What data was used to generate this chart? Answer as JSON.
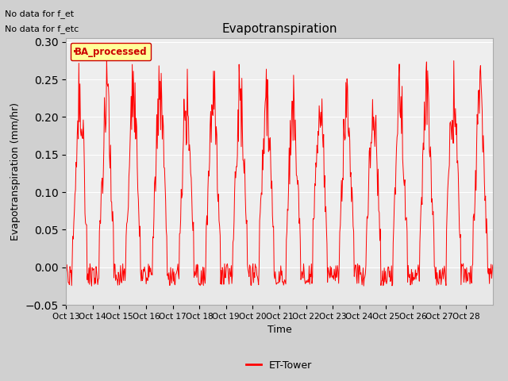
{
  "title": "Evapotranspiration",
  "ylabel": "Evapotranspiration (mm/hr)",
  "xlabel": "Time",
  "ylim": [
    -0.05,
    0.305
  ],
  "yticks": [
    -0.05,
    0.0,
    0.05,
    0.1,
    0.15,
    0.2,
    0.25,
    0.3
  ],
  "line_color": "red",
  "line_label": "ET-Tower",
  "legend_label": "BA_processed",
  "annotation1": "No data for f_et",
  "annotation2": "No data for f_etc",
  "fig_bg_color": "#d0d0d0",
  "ax_bg_color": "#e8e8e8",
  "x_tick_labels": [
    "Oct 13",
    "Oct 14",
    "Oct 15",
    "Oct 16",
    "Oct 17",
    "Oct 18",
    "Oct 19",
    "Oct 20",
    "Oct 21",
    "Oct 22",
    "Oct 23",
    "Oct 24",
    "Oct 25",
    "Oct 26",
    "Oct 27",
    "Oct 28"
  ],
  "n_days": 16
}
